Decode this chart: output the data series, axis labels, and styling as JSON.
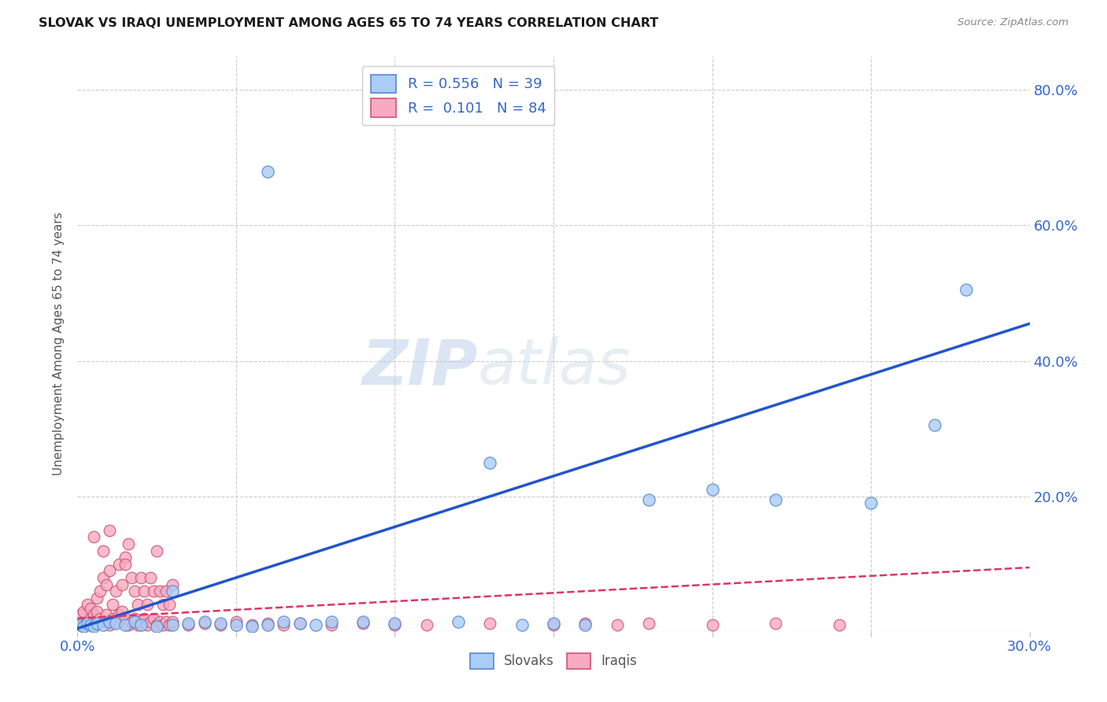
{
  "title": "SLOVAK VS IRAQI UNEMPLOYMENT AMONG AGES 65 TO 74 YEARS CORRELATION CHART",
  "source": "Source: ZipAtlas.com",
  "ylabel": "Unemployment Among Ages 65 to 74 years",
  "xlim": [
    0.0,
    0.3
  ],
  "ylim": [
    0.0,
    0.85
  ],
  "xticks": [
    0.0,
    0.05,
    0.1,
    0.15,
    0.2,
    0.25,
    0.3
  ],
  "xticklabels": [
    "0.0%",
    "",
    "",
    "",
    "",
    "",
    "30.0%"
  ],
  "yticks": [
    0.0,
    0.2,
    0.4,
    0.6,
    0.8
  ],
  "yticklabels": [
    "",
    "20.0%",
    "40.0%",
    "60.0%",
    "80.0%"
  ],
  "slovak_color": "#aaccf8",
  "slovak_edge": "#5588cc",
  "iraqi_color": "#f8aac0",
  "iraqi_edge": "#cc5577",
  "trend_slovak_color": "#2255cc",
  "trend_iraqi_color": "#dd3366",
  "R_slovak": 0.556,
  "N_slovak": 39,
  "R_iraqi": 0.101,
  "N_iraqi": 84,
  "background_color": "#ffffff",
  "grid_color": "#cccccc",
  "slovak_x": [
    0.001,
    0.002,
    0.003,
    0.004,
    0.005,
    0.006,
    0.008,
    0.01,
    0.012,
    0.015,
    0.018,
    0.02,
    0.025,
    0.03,
    0.035,
    0.04,
    0.045,
    0.05,
    0.055,
    0.06,
    0.065,
    0.07,
    0.075,
    0.08,
    0.09,
    0.1,
    0.12,
    0.14,
    0.15,
    0.16,
    0.06,
    0.13,
    0.18,
    0.2,
    0.22,
    0.25,
    0.27,
    0.28,
    0.03
  ],
  "slovak_y": [
    0.01,
    0.008,
    0.012,
    0.01,
    0.008,
    0.012,
    0.01,
    0.015,
    0.012,
    0.01,
    0.015,
    0.01,
    0.008,
    0.01,
    0.012,
    0.015,
    0.012,
    0.01,
    0.008,
    0.01,
    0.015,
    0.012,
    0.01,
    0.015,
    0.015,
    0.012,
    0.015,
    0.01,
    0.012,
    0.01,
    0.68,
    0.25,
    0.195,
    0.21,
    0.195,
    0.19,
    0.305,
    0.505,
    0.06
  ],
  "iraqi_x": [
    0.001,
    0.001,
    0.002,
    0.002,
    0.003,
    0.003,
    0.004,
    0.004,
    0.005,
    0.005,
    0.006,
    0.006,
    0.007,
    0.007,
    0.008,
    0.008,
    0.009,
    0.009,
    0.01,
    0.01,
    0.011,
    0.011,
    0.012,
    0.012,
    0.013,
    0.013,
    0.014,
    0.014,
    0.015,
    0.015,
    0.016,
    0.016,
    0.017,
    0.017,
    0.018,
    0.018,
    0.019,
    0.019,
    0.02,
    0.02,
    0.021,
    0.021,
    0.022,
    0.022,
    0.023,
    0.023,
    0.024,
    0.024,
    0.025,
    0.025,
    0.026,
    0.026,
    0.027,
    0.027,
    0.028,
    0.028,
    0.029,
    0.029,
    0.03,
    0.03,
    0.035,
    0.04,
    0.045,
    0.05,
    0.055,
    0.06,
    0.065,
    0.07,
    0.08,
    0.09,
    0.1,
    0.11,
    0.13,
    0.15,
    0.16,
    0.17,
    0.18,
    0.2,
    0.22,
    0.24,
    0.01,
    0.005,
    0.008,
    0.015
  ],
  "iraqi_y": [
    0.01,
    0.025,
    0.008,
    0.03,
    0.015,
    0.04,
    0.02,
    0.035,
    0.01,
    0.025,
    0.03,
    0.05,
    0.02,
    0.06,
    0.015,
    0.08,
    0.025,
    0.07,
    0.01,
    0.09,
    0.02,
    0.04,
    0.015,
    0.06,
    0.025,
    0.1,
    0.03,
    0.07,
    0.02,
    0.11,
    0.01,
    0.13,
    0.015,
    0.08,
    0.02,
    0.06,
    0.01,
    0.04,
    0.015,
    0.08,
    0.02,
    0.06,
    0.01,
    0.04,
    0.015,
    0.08,
    0.02,
    0.06,
    0.01,
    0.12,
    0.015,
    0.06,
    0.01,
    0.04,
    0.015,
    0.06,
    0.01,
    0.04,
    0.015,
    0.07,
    0.01,
    0.012,
    0.01,
    0.015,
    0.01,
    0.012,
    0.01,
    0.012,
    0.01,
    0.012,
    0.01,
    0.01,
    0.012,
    0.01,
    0.012,
    0.01,
    0.012,
    0.01,
    0.012,
    0.01,
    0.15,
    0.14,
    0.12,
    0.1
  ]
}
